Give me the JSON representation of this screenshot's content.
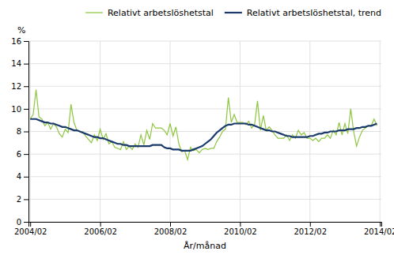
{
  "chart_data": {
    "type": "line",
    "xlabel": "År/månad",
    "ylabel": "%",
    "x": [
      2004.0833,
      2004.1667,
      2004.25,
      2004.3333,
      2004.4167,
      2004.5,
      2004.5833,
      2004.6667,
      2004.75,
      2004.8333,
      2004.9167,
      2005,
      2005.0833,
      2005.1667,
      2005.25,
      2005.3333,
      2005.4167,
      2005.5,
      2005.5833,
      2005.6667,
      2005.75,
      2005.8333,
      2005.9167,
      2006,
      2006.0833,
      2006.1667,
      2006.25,
      2006.3333,
      2006.4167,
      2006.5,
      2006.5833,
      2006.6667,
      2006.75,
      2006.8333,
      2006.9167,
      2007,
      2007.0833,
      2007.1667,
      2007.25,
      2007.3333,
      2007.4167,
      2007.5,
      2007.5833,
      2007.6667,
      2007.75,
      2007.8333,
      2007.9167,
      2008,
      2008.0833,
      2008.1667,
      2008.25,
      2008.3333,
      2008.4167,
      2008.5,
      2008.5833,
      2008.6667,
      2008.75,
      2008.8333,
      2008.9167,
      2009,
      2009.0833,
      2009.1667,
      2009.25,
      2009.3333,
      2009.4167,
      2009.5,
      2009.5833,
      2009.6667,
      2009.75,
      2009.8333,
      2009.9167,
      2010,
      2010.0833,
      2010.1667,
      2010.25,
      2010.3333,
      2010.4167,
      2010.5,
      2010.5833,
      2010.6667,
      2010.75,
      2010.8333,
      2010.9167,
      2011,
      2011.0833,
      2011.1667,
      2011.25,
      2011.3333,
      2011.4167,
      2011.5,
      2011.5833,
      2011.6667,
      2011.75,
      2011.8333,
      2011.9167,
      2012,
      2012.0833,
      2012.1667,
      2012.25,
      2012.3333,
      2012.4167,
      2012.5,
      2012.5833,
      2012.6667,
      2012.75,
      2012.8333,
      2012.9167,
      2013,
      2013.0833,
      2013.1667,
      2013.25,
      2013.3333,
      2013.4167,
      2013.5,
      2013.5833,
      2013.6667,
      2013.75,
      2013.8333,
      2013.9167,
      2014
    ],
    "xlim": [
      2004.0333,
      2014.125
    ],
    "xticks": [
      {
        "value": 2004.0833,
        "label": "2004/02"
      },
      {
        "value": 2006.0833,
        "label": "2006/02"
      },
      {
        "value": 2008.0833,
        "label": "2008/02"
      },
      {
        "value": 2010.0833,
        "label": "2010/02"
      },
      {
        "value": 2012.0833,
        "label": "2012/02"
      },
      {
        "value": 2014.0833,
        "label": "2014/02"
      }
    ],
    "ylim": [
      0,
      16
    ],
    "yticks": [
      0,
      2,
      4,
      6,
      8,
      10,
      12,
      14,
      16
    ],
    "grid": true,
    "legend": "upper right",
    "series": [
      {
        "name": "Relativt arbetslöshetstal",
        "color": "#8dc63f",
        "values": [
          9.1,
          9.5,
          11.7,
          9.3,
          9.1,
          8.5,
          8.8,
          8.2,
          8.7,
          8.4,
          7.8,
          7.5,
          8.2,
          7.9,
          10.4,
          8.8,
          8.1,
          8.0,
          8.0,
          7.6,
          7.3,
          7.0,
          7.7,
          7.2,
          8.2,
          7.3,
          7.8,
          6.9,
          7.1,
          6.6,
          6.5,
          6.4,
          7.1,
          6.4,
          6.7,
          6.4,
          6.9,
          6.6,
          7.7,
          6.8,
          8.1,
          7.3,
          8.7,
          8.3,
          8.3,
          8.3,
          8.1,
          7.7,
          8.7,
          7.6,
          8.4,
          6.9,
          6.2,
          6.3,
          5.5,
          6.6,
          6.3,
          6.4,
          6.1,
          6.4,
          6.5,
          6.4,
          6.5,
          6.5,
          7.1,
          7.5,
          8.0,
          8.2,
          11.0,
          8.8,
          9.5,
          8.8,
          8.8,
          8.8,
          8.6,
          8.9,
          8.3,
          8.6,
          10.7,
          8.1,
          9.4,
          8.1,
          8.4,
          8.1,
          7.7,
          7.4,
          7.4,
          7.4,
          7.7,
          7.2,
          7.7,
          7.4,
          8.1,
          7.7,
          7.9,
          7.4,
          7.4,
          7.2,
          7.4,
          7.1,
          7.4,
          7.4,
          7.7,
          7.4,
          8.1,
          7.7,
          8.8,
          7.7,
          8.7,
          7.8,
          10.0,
          8.0,
          6.7,
          7.5,
          8.1,
          8.3,
          8.5,
          8.5,
          9.1,
          8.5
        ]
      },
      {
        "name": "Relativt arbetslöshetstal, trend",
        "color": "#1a3a6b",
        "values": [
          9.1,
          9.1,
          9.1,
          9.0,
          8.9,
          8.8,
          8.8,
          8.7,
          8.7,
          8.6,
          8.5,
          8.4,
          8.4,
          8.3,
          8.2,
          8.1,
          8.1,
          8.0,
          7.9,
          7.8,
          7.7,
          7.6,
          7.5,
          7.5,
          7.4,
          7.4,
          7.3,
          7.2,
          7.1,
          7.0,
          6.9,
          6.9,
          6.8,
          6.8,
          6.7,
          6.7,
          6.7,
          6.7,
          6.7,
          6.7,
          6.7,
          6.7,
          6.8,
          6.8,
          6.8,
          6.8,
          6.6,
          6.5,
          6.5,
          6.4,
          6.4,
          6.4,
          6.3,
          6.3,
          6.3,
          6.3,
          6.4,
          6.5,
          6.6,
          6.7,
          6.9,
          7.1,
          7.3,
          7.6,
          7.9,
          8.1,
          8.3,
          8.5,
          8.6,
          8.6,
          8.7,
          8.7,
          8.7,
          8.7,
          8.7,
          8.6,
          8.6,
          8.5,
          8.4,
          8.3,
          8.2,
          8.1,
          8.1,
          8.0,
          8.0,
          7.9,
          7.8,
          7.7,
          7.6,
          7.6,
          7.5,
          7.5,
          7.5,
          7.5,
          7.5,
          7.5,
          7.6,
          7.6,
          7.7,
          7.8,
          7.8,
          7.9,
          7.9,
          8.0,
          8.0,
          8.0,
          8.1,
          8.1,
          8.1,
          8.2,
          8.2,
          8.2,
          8.3,
          8.3,
          8.4,
          8.4,
          8.5,
          8.5,
          8.6,
          8.7
        ]
      }
    ]
  }
}
